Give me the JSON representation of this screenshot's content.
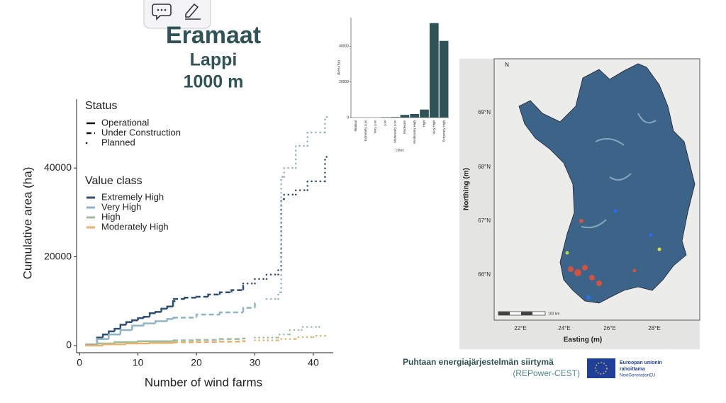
{
  "slide": {
    "title": "Eramaat",
    "subtitle": "Lappi",
    "distance": "1000 m"
  },
  "chart_data": [
    {
      "type": "step",
      "xlabel": "Number of wind farms",
      "ylabel": "Cumulative area (ha)",
      "xlim": [
        -0.5,
        43.4
      ],
      "xticks": [
        0,
        10,
        20,
        30,
        40
      ],
      "ylim": [
        -1600,
        55500
      ],
      "yticks": [
        0,
        20000,
        40000
      ],
      "status_title": "Status",
      "statuses": [
        "Operational",
        "Under Construction",
        "Planned"
      ],
      "value_title": "Value class",
      "series": [
        {
          "name": "Extremely High",
          "status": "Operational",
          "color": "#2d4f73",
          "x": [
            1,
            3,
            4,
            5,
            6,
            7,
            8,
            9,
            10,
            11,
            12,
            13,
            14,
            15,
            16
          ],
          "values": [
            200,
            1800,
            2500,
            3200,
            3800,
            4700,
            5300,
            5700,
            6200,
            6500,
            7300,
            7600,
            8300,
            8800,
            10000
          ]
        },
        {
          "name": "Extremely High",
          "status": "Under Construction",
          "color": "#2d4f73",
          "x": [
            16,
            18,
            20,
            22,
            24,
            26,
            28
          ],
          "values": [
            10500,
            10800,
            11000,
            11500,
            12000,
            12500,
            13500
          ]
        },
        {
          "name": "Extremely High",
          "status": "Planned",
          "color": "#2d4f73",
          "x": [
            28,
            30,
            32,
            34,
            34.5,
            35,
            37,
            39,
            42
          ],
          "values": [
            14000,
            15000,
            16000,
            17000,
            33000,
            34000,
            35000,
            37000,
            42500
          ]
        },
        {
          "name": "Very High",
          "status": "Operational",
          "color": "#8fb3c7",
          "x": [
            1,
            3,
            5,
            7,
            9,
            11,
            13,
            15,
            16
          ],
          "values": [
            100,
            1500,
            2500,
            3500,
            4500,
            5000,
            5500,
            6000,
            6200
          ]
        },
        {
          "name": "Very High",
          "status": "Under Construction",
          "color": "#8fb3c7",
          "x": [
            16,
            20,
            24,
            28,
            30
          ],
          "values": [
            6300,
            7000,
            7500,
            8500,
            9500
          ]
        },
        {
          "name": "Very High",
          "status": "Planned",
          "color": "#8fb3c7",
          "x": [
            32,
            34,
            34.5,
            35,
            37,
            39,
            42
          ],
          "values": [
            10500,
            12000,
            38000,
            40000,
            45000,
            48000,
            51500
          ]
        },
        {
          "name": "High",
          "status": "Operational",
          "color": "#9cbfa0",
          "x": [
            1,
            3,
            6,
            10,
            16
          ],
          "values": [
            50,
            500,
            800,
            1000,
            1100
          ]
        },
        {
          "name": "High",
          "status": "Under Construction",
          "color": "#9cbfa0",
          "x": [
            16,
            20,
            24,
            28
          ],
          "values": [
            1200,
            1300,
            1500,
            1600
          ]
        },
        {
          "name": "High",
          "status": "Planned",
          "color": "#9cbfa0",
          "x": [
            30,
            34,
            36,
            38,
            41
          ],
          "values": [
            1800,
            2500,
            3500,
            4200,
            4500
          ]
        },
        {
          "name": "Moderately High",
          "status": "Operational",
          "color": "#e8b06a",
          "x": [
            1,
            4,
            8,
            12,
            16
          ],
          "values": [
            20,
            300,
            500,
            600,
            700
          ]
        },
        {
          "name": "Moderately High",
          "status": "Under Construction",
          "color": "#e8b06a",
          "x": [
            16,
            20,
            24,
            28
          ],
          "values": [
            750,
            800,
            900,
            1000
          ]
        },
        {
          "name": "Moderately High",
          "status": "Planned",
          "color": "#e8b06a",
          "x": [
            30,
            34,
            37,
            40,
            42
          ],
          "values": [
            1200,
            1500,
            1900,
            2200,
            2500
          ]
        }
      ]
    },
    {
      "type": "bar",
      "xlabel": "class",
      "ylabel": "Area (ha)",
      "color": "#2f5357",
      "categories": [
        "Minimal",
        "Extremely Low",
        "Very Low",
        "Low",
        "Moderately Low",
        "Moderate",
        "Moderately High",
        "High",
        "Very High",
        "Extremely High"
      ],
      "values": [
        0,
        0,
        0,
        200,
        300,
        1500,
        2000,
        4500,
        53000,
        43000
      ],
      "ylim": [
        0,
        56000
      ],
      "yticks": [
        0,
        20000,
        40000
      ]
    }
  ],
  "map": {
    "xlabel": "Easting (m)",
    "ylabel": "Northing (m)",
    "xticks": [
      "22°E",
      "24°E",
      "26°E",
      "28°E"
    ],
    "yticks": [
      "66°N",
      "67°N",
      "68°N",
      "69°N"
    ],
    "scale": "100 km",
    "north": "N"
  },
  "footer": {
    "project": "Puhtaan energiajärjestelmän siirtymä",
    "acronym": "(REPower-CEST)",
    "eu_line1": "Euroopan unionin",
    "eu_line2": "rahoittama",
    "eu_line3": "NextGenerationEU"
  }
}
